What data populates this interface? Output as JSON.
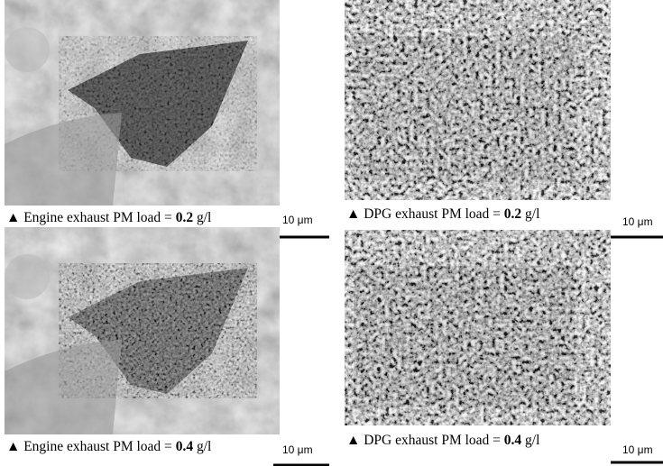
{
  "panels": [
    {
      "caption": {
        "prefix": "Engine exhaust PM load = ",
        "value": "0.2",
        "unit": " g/l"
      },
      "scale_bar": "10 μm"
    },
    {
      "caption": {
        "prefix": "DPG exhaust PM load = ",
        "value": "0.2",
        "unit": " g/l"
      },
      "scale_bar": "10 μm"
    },
    {
      "caption": {
        "prefix": "Engine exhaust PM load = ",
        "value": "0.4",
        "unit": " g/l"
      },
      "scale_bar": "10 μm"
    },
    {
      "caption": {
        "prefix": "DPG exhaust PM load = ",
        "value": "0.4",
        "unit": " g/l"
      },
      "scale_bar": "10 μm"
    }
  ]
}
